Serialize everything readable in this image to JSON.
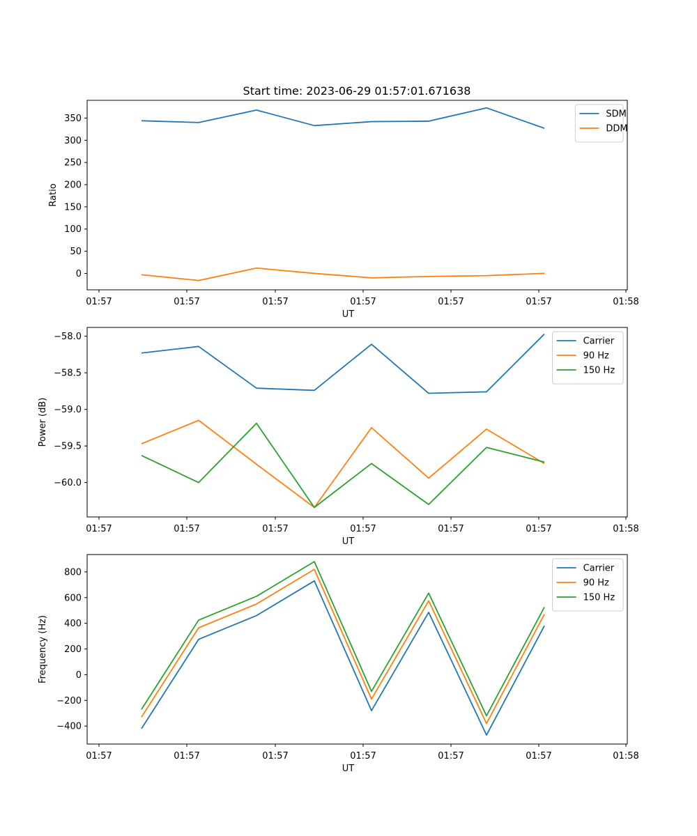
{
  "figure_title": "Start time: 2023-06-29 01:57:01.671638",
  "chart_data": [
    {
      "type": "line",
      "title": "Start time: 2023-06-29 01:57:01.671638",
      "xlabel": "UT",
      "ylabel": "Ratio",
      "x_tick_labels": [
        "01:57",
        "01:57",
        "01:57",
        "01:57",
        "01:57",
        "01:57",
        "01:57",
        "01:58"
      ],
      "ylim": [
        -37,
        390
      ],
      "y_ticks": [
        0,
        50,
        100,
        150,
        200,
        250,
        300,
        350
      ],
      "y_tick_labels": [
        "0",
        "50",
        "100",
        "150",
        "200",
        "250",
        "300",
        "350"
      ],
      "grid": false,
      "legend_position": "top-right",
      "series": [
        {
          "name": "SDM",
          "color": "#1f77b4",
          "values": [
            344,
            340,
            368,
            333,
            342,
            343,
            373,
            327
          ]
        },
        {
          "name": "DDM",
          "color": "#ff7f0e",
          "values": [
            -3,
            -16,
            12,
            0,
            -10,
            -7,
            -5,
            0
          ]
        }
      ]
    },
    {
      "type": "line",
      "xlabel": "UT",
      "ylabel": "Power (dB)",
      "x_tick_labels": [
        "01:57",
        "01:57",
        "01:57",
        "01:57",
        "01:57",
        "01:57",
        "01:57",
        "01:58"
      ],
      "ylim": [
        -60.47,
        -57.88
      ],
      "y_ticks": [
        -60.0,
        -59.5,
        -59.0,
        -58.5,
        -58.0
      ],
      "y_tick_labels": [
        "−60.0",
        "−59.5",
        "−59.0",
        "−58.5",
        "−58.0"
      ],
      "grid": false,
      "legend_position": "top-right",
      "series": [
        {
          "name": "Carrier",
          "color": "#1f77b4",
          "values": [
            -58.23,
            -58.14,
            -58.71,
            -58.74,
            -58.11,
            -58.78,
            -58.76,
            -57.97
          ]
        },
        {
          "name": "90 Hz",
          "color": "#ff7f0e",
          "values": [
            -59.47,
            -59.15,
            -59.75,
            -60.34,
            -59.25,
            -59.94,
            -59.27,
            -59.74
          ]
        },
        {
          "name": "150 Hz",
          "color": "#2ca02c",
          "values": [
            -59.63,
            -60.0,
            -59.19,
            -60.34,
            -59.74,
            -60.3,
            -59.52,
            -59.72
          ]
        }
      ]
    },
    {
      "type": "line",
      "xlabel": "UT",
      "ylabel": "Frequency (Hz)",
      "x_tick_labels": [
        "01:57",
        "01:57",
        "01:57",
        "01:57",
        "01:57",
        "01:57",
        "01:57",
        "01:58"
      ],
      "ylim": [
        -540,
        935
      ],
      "y_ticks": [
        -400,
        -200,
        0,
        200,
        400,
        600,
        800
      ],
      "y_tick_labels": [
        "−400",
        "−200",
        "0",
        "200",
        "400",
        "600",
        "800"
      ],
      "grid": false,
      "legend_position": "top-right",
      "series": [
        {
          "name": "Carrier",
          "color": "#1f77b4",
          "values": [
            -420,
            275,
            460,
            730,
            -280,
            485,
            -470,
            380
          ]
        },
        {
          "name": "90 Hz",
          "color": "#ff7f0e",
          "values": [
            -330,
            365,
            550,
            820,
            -190,
            575,
            -380,
            470
          ]
        },
        {
          "name": "150 Hz",
          "color": "#2ca02c",
          "values": [
            -270,
            425,
            610,
            880,
            -130,
            635,
            -320,
            525
          ]
        }
      ]
    }
  ]
}
